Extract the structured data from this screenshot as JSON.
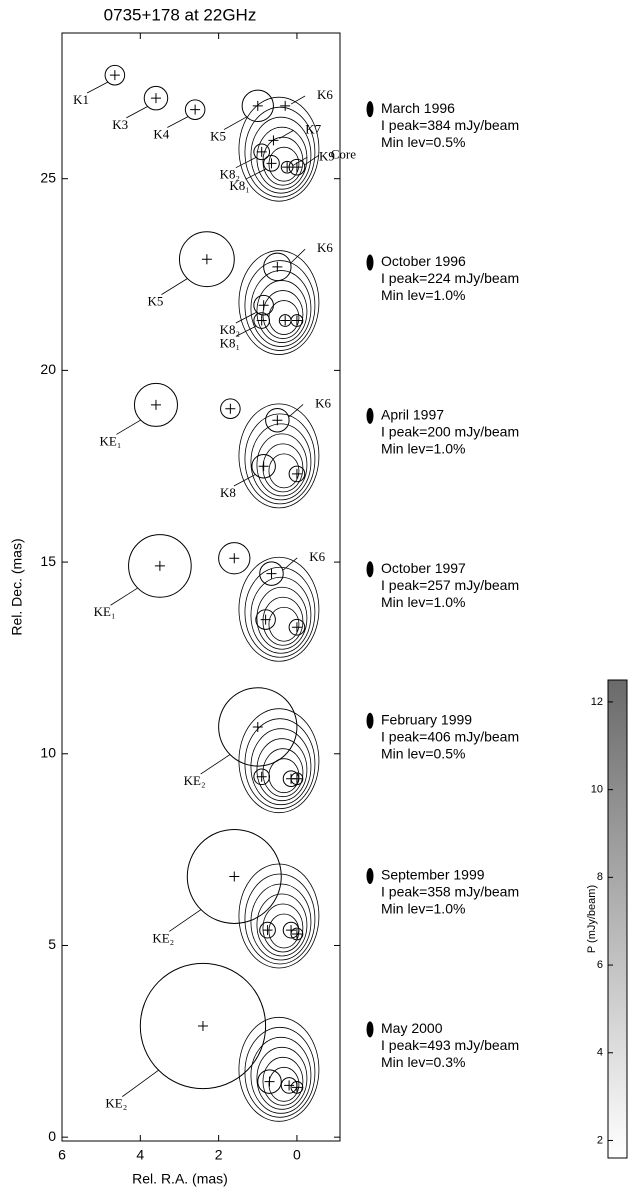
{
  "chart_data": {
    "type": "contour",
    "title": "0735+178 at 22GHz",
    "xlabel": "Rel. R.A. (mas)",
    "ylabel": "Rel. Dec. (mas)",
    "xlim": [
      6,
      -1.1
    ],
    "ylim": [
      -0.1,
      28.8
    ],
    "xticks": [
      6,
      4,
      2,
      0
    ],
    "yticks": [
      0,
      5,
      10,
      15,
      20,
      25
    ],
    "epochs": [
      {
        "date": "March 1996",
        "peak": "I peak=384 mJy/beam",
        "minlev": "Min lev=0.5%",
        "components": [
          {
            "name": "K1",
            "x": 4.65,
            "y": 27.7,
            "size": 0.5
          },
          {
            "name": "K3",
            "x": 3.6,
            "y": 27.1,
            "size": 0.6
          },
          {
            "name": "K4",
            "x": 2.6,
            "y": 26.8,
            "size": 0.5
          },
          {
            "name": "K5",
            "x": 1.0,
            "y": 26.9,
            "size": 0.8
          },
          {
            "name": "K6",
            "x": 0.3,
            "y": 26.9,
            "size": null
          },
          {
            "name": "K7",
            "x": 0.6,
            "y": 26.0,
            "size": null
          },
          {
            "name": "K8₂",
            "x": 0.9,
            "y": 25.7,
            "size": 0.4
          },
          {
            "name": "K8₁",
            "x": 0.65,
            "y": 25.4,
            "size": 0.4
          },
          {
            "name": "K9",
            "x": 0.25,
            "y": 25.3,
            "size": 0.3
          },
          {
            "name": "Core",
            "x": 0,
            "y": 25.3,
            "size": 0.4
          }
        ]
      },
      {
        "date": "October 1996",
        "peak": "I peak=224 mJy/beam",
        "minlev": "Min lev=1.0%",
        "components": [
          {
            "name": "K5",
            "x": 2.3,
            "y": 22.9,
            "size": 1.4
          },
          {
            "name": "K6",
            "x": 0.5,
            "y": 22.7,
            "size": 0.7
          },
          {
            "name": "K8₂",
            "x": 0.85,
            "y": 21.7,
            "size": 0.5
          },
          {
            "name": "K8₁",
            "x": 0.9,
            "y": 21.3,
            "size": 0.4
          },
          {
            "name": null,
            "x": 0.3,
            "y": 21.3,
            "size": 0.3
          },
          {
            "name": null,
            "x": 0,
            "y": 21.3,
            "size": 0.3
          }
        ]
      },
      {
        "date": "April 1997",
        "peak": "I peak=200 mJy/beam",
        "minlev": "Min lev=1.0%",
        "components": [
          {
            "name": "KE₁",
            "x": 3.6,
            "y": 19.1,
            "size": 1.1
          },
          {
            "name": null,
            "x": 1.7,
            "y": 19.0,
            "size": 0.5
          },
          {
            "name": "K6",
            "x": 0.5,
            "y": 18.7,
            "size": 0.6
          },
          {
            "name": "K8",
            "x": 0.85,
            "y": 17.5,
            "size": 0.6
          },
          {
            "name": null,
            "x": 0,
            "y": 17.3,
            "size": 0.4
          }
        ]
      },
      {
        "date": "October 1997",
        "peak": "I peak=257 mJy/beam",
        "minlev": "Min lev=1.0%",
        "components": [
          {
            "name": "KE₁",
            "x": 3.5,
            "y": 14.9,
            "size": 1.6
          },
          {
            "name": null,
            "x": 1.6,
            "y": 15.1,
            "size": 0.8
          },
          {
            "name": "K6",
            "x": 0.65,
            "y": 14.7,
            "size": 0.6
          },
          {
            "name": null,
            "x": 0.8,
            "y": 13.5,
            "size": 0.5
          },
          {
            "name": null,
            "x": 0,
            "y": 13.3,
            "size": 0.4
          }
        ]
      },
      {
        "date": "February 1999",
        "peak": "I peak=406 mJy/beam",
        "minlev": "Min lev=0.5%",
        "components": [
          {
            "name": "KE₂",
            "x": 1.0,
            "y": 10.7,
            "size": 2.0
          },
          {
            "name": null,
            "x": 0.9,
            "y": 9.4,
            "size": 0.4
          },
          {
            "name": null,
            "x": 0.15,
            "y": 9.35,
            "size": 0.4
          },
          {
            "name": null,
            "x": 0,
            "y": 9.35,
            "size": 0.3
          }
        ]
      },
      {
        "date": "September 1999",
        "peak": "I peak=358 mJy/beam",
        "minlev": "Min lev=1.0%",
        "components": [
          {
            "name": "KE₂",
            "x": 1.6,
            "y": 6.8,
            "size": 2.4
          },
          {
            "name": null,
            "x": 0.75,
            "y": 5.4,
            "size": 0.4
          },
          {
            "name": null,
            "x": 0.15,
            "y": 5.4,
            "size": 0.4
          },
          {
            "name": null,
            "x": 0,
            "y": 5.3,
            "size": 0.3
          }
        ]
      },
      {
        "date": "May 2000",
        "peak": "I peak=493 mJy/beam",
        "minlev": "Min lev=0.3%",
        "components": [
          {
            "name": "KE₂",
            "x": 2.4,
            "y": 2.9,
            "size": 3.2
          },
          {
            "name": null,
            "x": 0.7,
            "y": 1.45,
            "size": 0.6
          },
          {
            "name": null,
            "x": 0.2,
            "y": 1.35,
            "size": 0.4
          },
          {
            "name": null,
            "x": 0,
            "y": 1.3,
            "size": 0.3
          }
        ]
      }
    ],
    "colorbar": {
      "label": "P (mJy/beam)",
      "lim": [
        1.6,
        12.5
      ],
      "ticks": [
        2,
        4,
        6,
        8,
        10,
        12
      ]
    }
  }
}
